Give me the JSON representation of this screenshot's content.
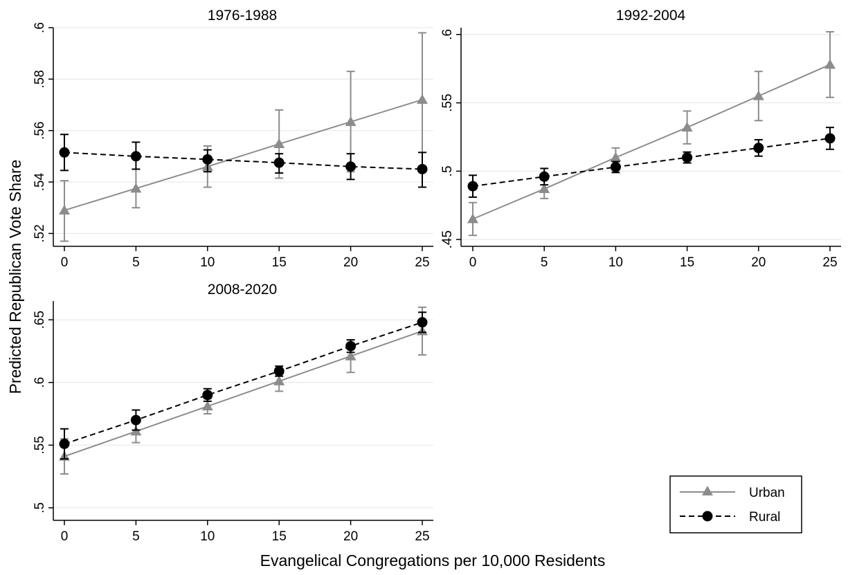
{
  "figure": {
    "ylabel": "Predicted Republican Vote Share",
    "xlabel": "Evangelical Congregations per 10,000 Residents"
  },
  "legend": {
    "placement": "bottom-right",
    "entries": [
      {
        "label": "Urban",
        "color": "#8c8c8c",
        "marker": "triangle",
        "line": "solid"
      },
      {
        "label": "Rural",
        "color": "#000000",
        "marker": "circle",
        "line": "dashed"
      }
    ]
  },
  "chart_data": [
    {
      "type": "line",
      "title": "1976-1988",
      "x": [
        0,
        5,
        10,
        15,
        20,
        25
      ],
      "xticks": [
        "0",
        "5",
        "10",
        "15",
        "20",
        "25"
      ],
      "yticks": [
        0.52,
        0.54,
        0.56,
        0.58,
        0.6
      ],
      "ytick_labels": [
        ".52",
        ".54",
        ".56",
        ".58",
        ".6"
      ],
      "ylim": [
        0.515,
        0.6
      ],
      "grid": true,
      "series": [
        {
          "name": "Urban",
          "values": [
            0.529,
            0.5375,
            0.546,
            0.5548,
            0.5634,
            0.572
          ],
          "lower": [
            0.517,
            0.53,
            0.538,
            0.5415,
            0.544,
            0.5455
          ],
          "upper": [
            0.5405,
            0.545,
            0.554,
            0.568,
            0.583,
            0.598
          ]
        },
        {
          "name": "Rural",
          "values": [
            0.5515,
            0.55,
            0.5488,
            0.5475,
            0.546,
            0.545
          ],
          "lower": [
            0.5445,
            0.545,
            0.544,
            0.5435,
            0.541,
            0.538
          ],
          "upper": [
            0.5585,
            0.5555,
            0.5525,
            0.551,
            0.551,
            0.5515
          ]
        }
      ]
    },
    {
      "type": "line",
      "title": "1992-2004",
      "x": [
        0,
        5,
        10,
        15,
        20,
        25
      ],
      "xticks": [
        "0",
        "5",
        "10",
        "15",
        "20",
        "25"
      ],
      "yticks": [
        0.45,
        0.5,
        0.55,
        0.6
      ],
      "ytick_labels": [
        ".45",
        ".5",
        ".55",
        ".6"
      ],
      "ylim": [
        0.445,
        0.605
      ],
      "grid": true,
      "series": [
        {
          "name": "Urban",
          "values": [
            0.465,
            0.487,
            0.51,
            0.532,
            0.555,
            0.578
          ],
          "lower": [
            0.453,
            0.48,
            0.503,
            0.52,
            0.537,
            0.554
          ],
          "upper": [
            0.477,
            0.494,
            0.517,
            0.544,
            0.573,
            0.602
          ]
        },
        {
          "name": "Rural",
          "values": [
            0.489,
            0.496,
            0.503,
            0.51,
            0.517,
            0.524
          ],
          "lower": [
            0.481,
            0.49,
            0.499,
            0.506,
            0.511,
            0.516
          ],
          "upper": [
            0.497,
            0.502,
            0.507,
            0.514,
            0.523,
            0.532
          ]
        }
      ]
    },
    {
      "type": "line",
      "title": "2008-2020",
      "x": [
        0,
        5,
        10,
        15,
        20,
        25
      ],
      "xticks": [
        "0",
        "5",
        "10",
        "15",
        "20",
        "25"
      ],
      "yticks": [
        0.5,
        0.55,
        0.6,
        0.65
      ],
      "ytick_labels": [
        ".5",
        ".55",
        ".6",
        ".65"
      ],
      "ylim": [
        0.49,
        0.665
      ],
      "grid": true,
      "series": [
        {
          "name": "Urban",
          "values": [
            0.541,
            0.561,
            0.581,
            0.601,
            0.621,
            0.641
          ],
          "lower": [
            0.527,
            0.552,
            0.575,
            0.593,
            0.608,
            0.622
          ],
          "upper": [
            0.555,
            0.57,
            0.587,
            0.609,
            0.634,
            0.66
          ]
        },
        {
          "name": "Rural",
          "values": [
            0.551,
            0.57,
            0.59,
            0.609,
            0.629,
            0.648
          ],
          "lower": [
            0.539,
            0.562,
            0.585,
            0.605,
            0.624,
            0.64
          ],
          "upper": [
            0.563,
            0.578,
            0.595,
            0.613,
            0.634,
            0.656
          ]
        }
      ]
    }
  ]
}
